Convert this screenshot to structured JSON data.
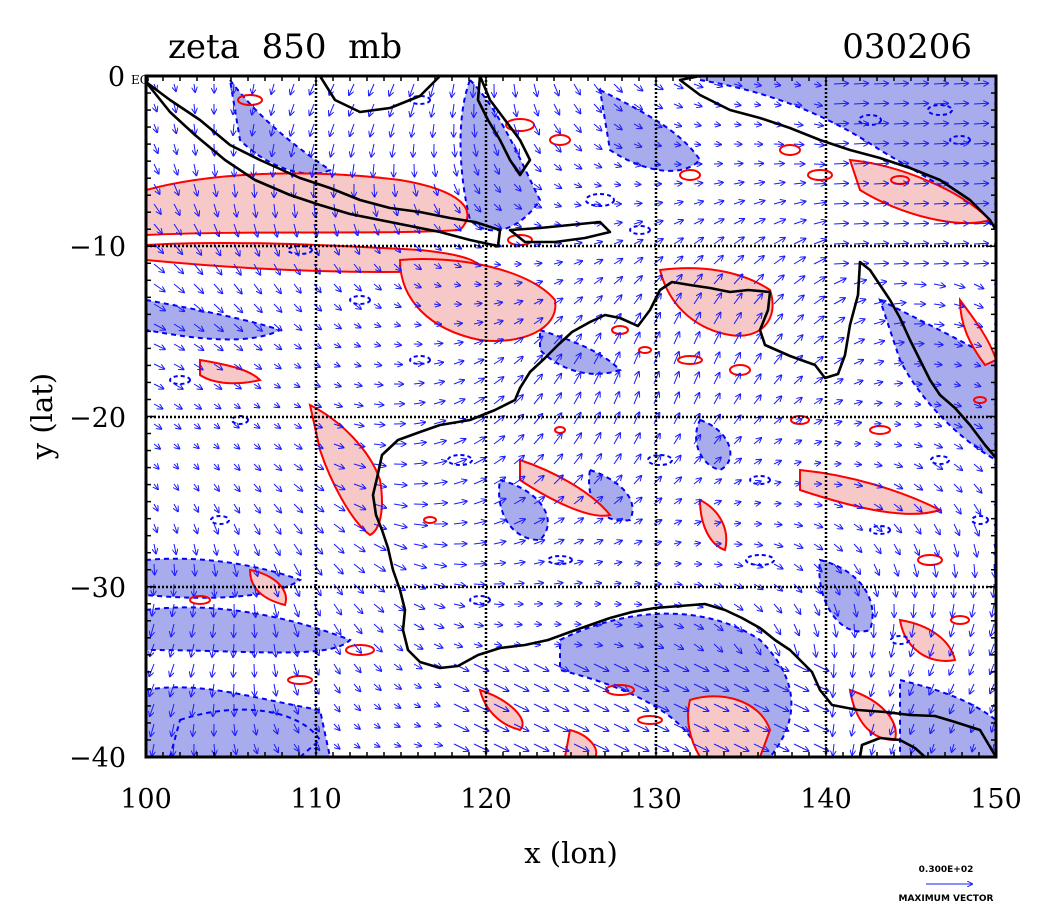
{
  "header": {
    "title_left": "zeta  850  mb",
    "title_right": "030206"
  },
  "axes": {
    "xlabel": "x (lon)",
    "ylabel": "y (lat)",
    "x_ticks": [
      "100",
      "110",
      "120",
      "130",
      "140",
      "150"
    ],
    "y_ticks": [
      "0",
      "−10",
      "−20",
      "−30",
      "−40"
    ],
    "eq_label": "EQ",
    "xlim": [
      100,
      150
    ],
    "ylim": [
      -40,
      0
    ]
  },
  "legend": {
    "vector_value": "0.300E+02",
    "vector_label": "MAXIMUM VECTOR"
  },
  "colors": {
    "positive_fill": "#f7c8c8",
    "positive_contour": "#ff0000",
    "negative_fill": "#a9acec",
    "negative_contour": "#0000ff",
    "vector": "#1a1aff",
    "coast": "#000000"
  }
}
